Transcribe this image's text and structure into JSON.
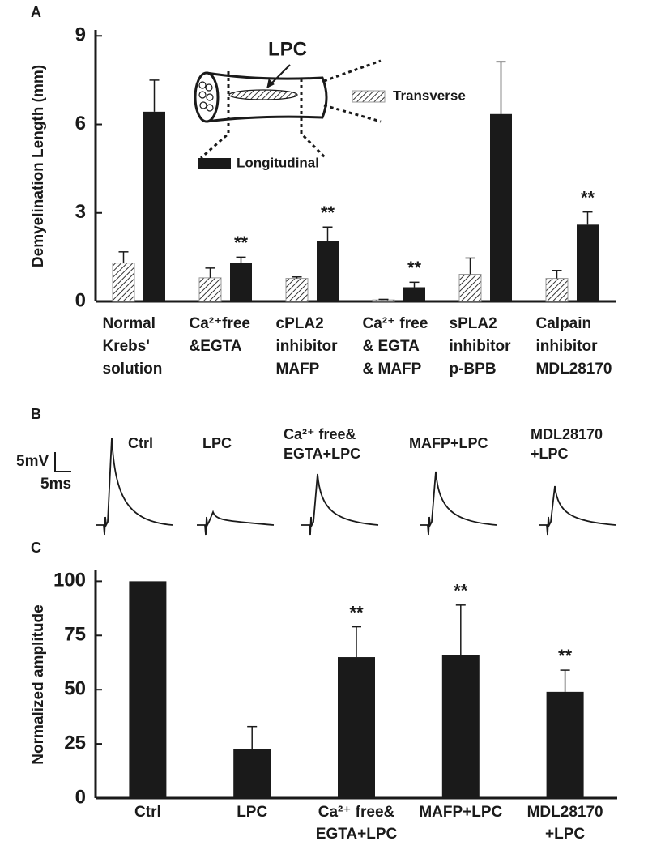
{
  "chart_data": [
    {
      "type": "bar",
      "panel": "A",
      "ylabel": "Demyelination Length (mm)",
      "diagram_label": "LPC",
      "categories": [
        [
          "Normal",
          "Krebs'",
          "solution"
        ],
        [
          "Ca²⁺free",
          "&EGTA"
        ],
        [
          "cPLA2",
          "inhibitor",
          "MAFP"
        ],
        [
          "Ca²⁺ free",
          "& EGTA",
          "& MAFP"
        ],
        [
          "sPLA2",
          "inhibitor",
          "p-BPB"
        ],
        [
          "Calpain",
          "inhibitor",
          "MDL28170"
        ]
      ],
      "series": [
        {
          "name": "Transverse",
          "color": "hatch",
          "values": [
            1.3,
            0.8,
            0.78,
            0.05,
            0.92,
            0.78
          ],
          "errors": [
            0.38,
            0.33,
            0.05,
            0.02,
            0.55,
            0.27
          ],
          "annotations": [
            null,
            null,
            null,
            null,
            null,
            null
          ]
        },
        {
          "name": "Longitudinal",
          "color": "#1a1a1a",
          "values": [
            6.43,
            1.3,
            2.05,
            0.48,
            6.35,
            2.6
          ],
          "errors": [
            1.07,
            0.2,
            0.47,
            0.17,
            1.77,
            0.43
          ],
          "annotations": [
            null,
            "**",
            "**",
            "**",
            null,
            "**"
          ]
        }
      ],
      "ylim": [
        0,
        9.2
      ],
      "yticks": [
        0,
        3,
        6,
        9
      ],
      "grid": false
    },
    {
      "type": "traces",
      "panel": "B",
      "labels": [
        [
          "Ctrl"
        ],
        [
          "LPC"
        ],
        [
          "Ca²⁺ free&",
          "EGTA+LPC"
        ],
        [
          "MAFP+LPC"
        ],
        [
          "MDL28170",
          "+LPC"
        ]
      ],
      "scale_bar": [
        "5mV",
        "5ms"
      ]
    },
    {
      "type": "bar",
      "panel": "C",
      "ylabel": "Normalized amplitude",
      "categories": [
        [
          "Ctrl"
        ],
        [
          "LPC"
        ],
        [
          "Ca²⁺ free&",
          "EGTA+LPC"
        ],
        [
          "MAFP+LPC"
        ],
        [
          "MDL28170",
          "+LPC"
        ]
      ],
      "series": [
        {
          "name": null,
          "color": "#1a1a1a",
          "values": [
            100,
            22.5,
            65,
            66,
            49
          ],
          "errors": [
            0,
            10.5,
            14,
            23,
            10
          ],
          "annotations": [
            null,
            null,
            "**",
            "**",
            "**"
          ]
        }
      ],
      "ylim": [
        0,
        105
      ],
      "yticks": [
        0,
        25,
        50,
        75,
        100
      ],
      "grid": false
    }
  ]
}
